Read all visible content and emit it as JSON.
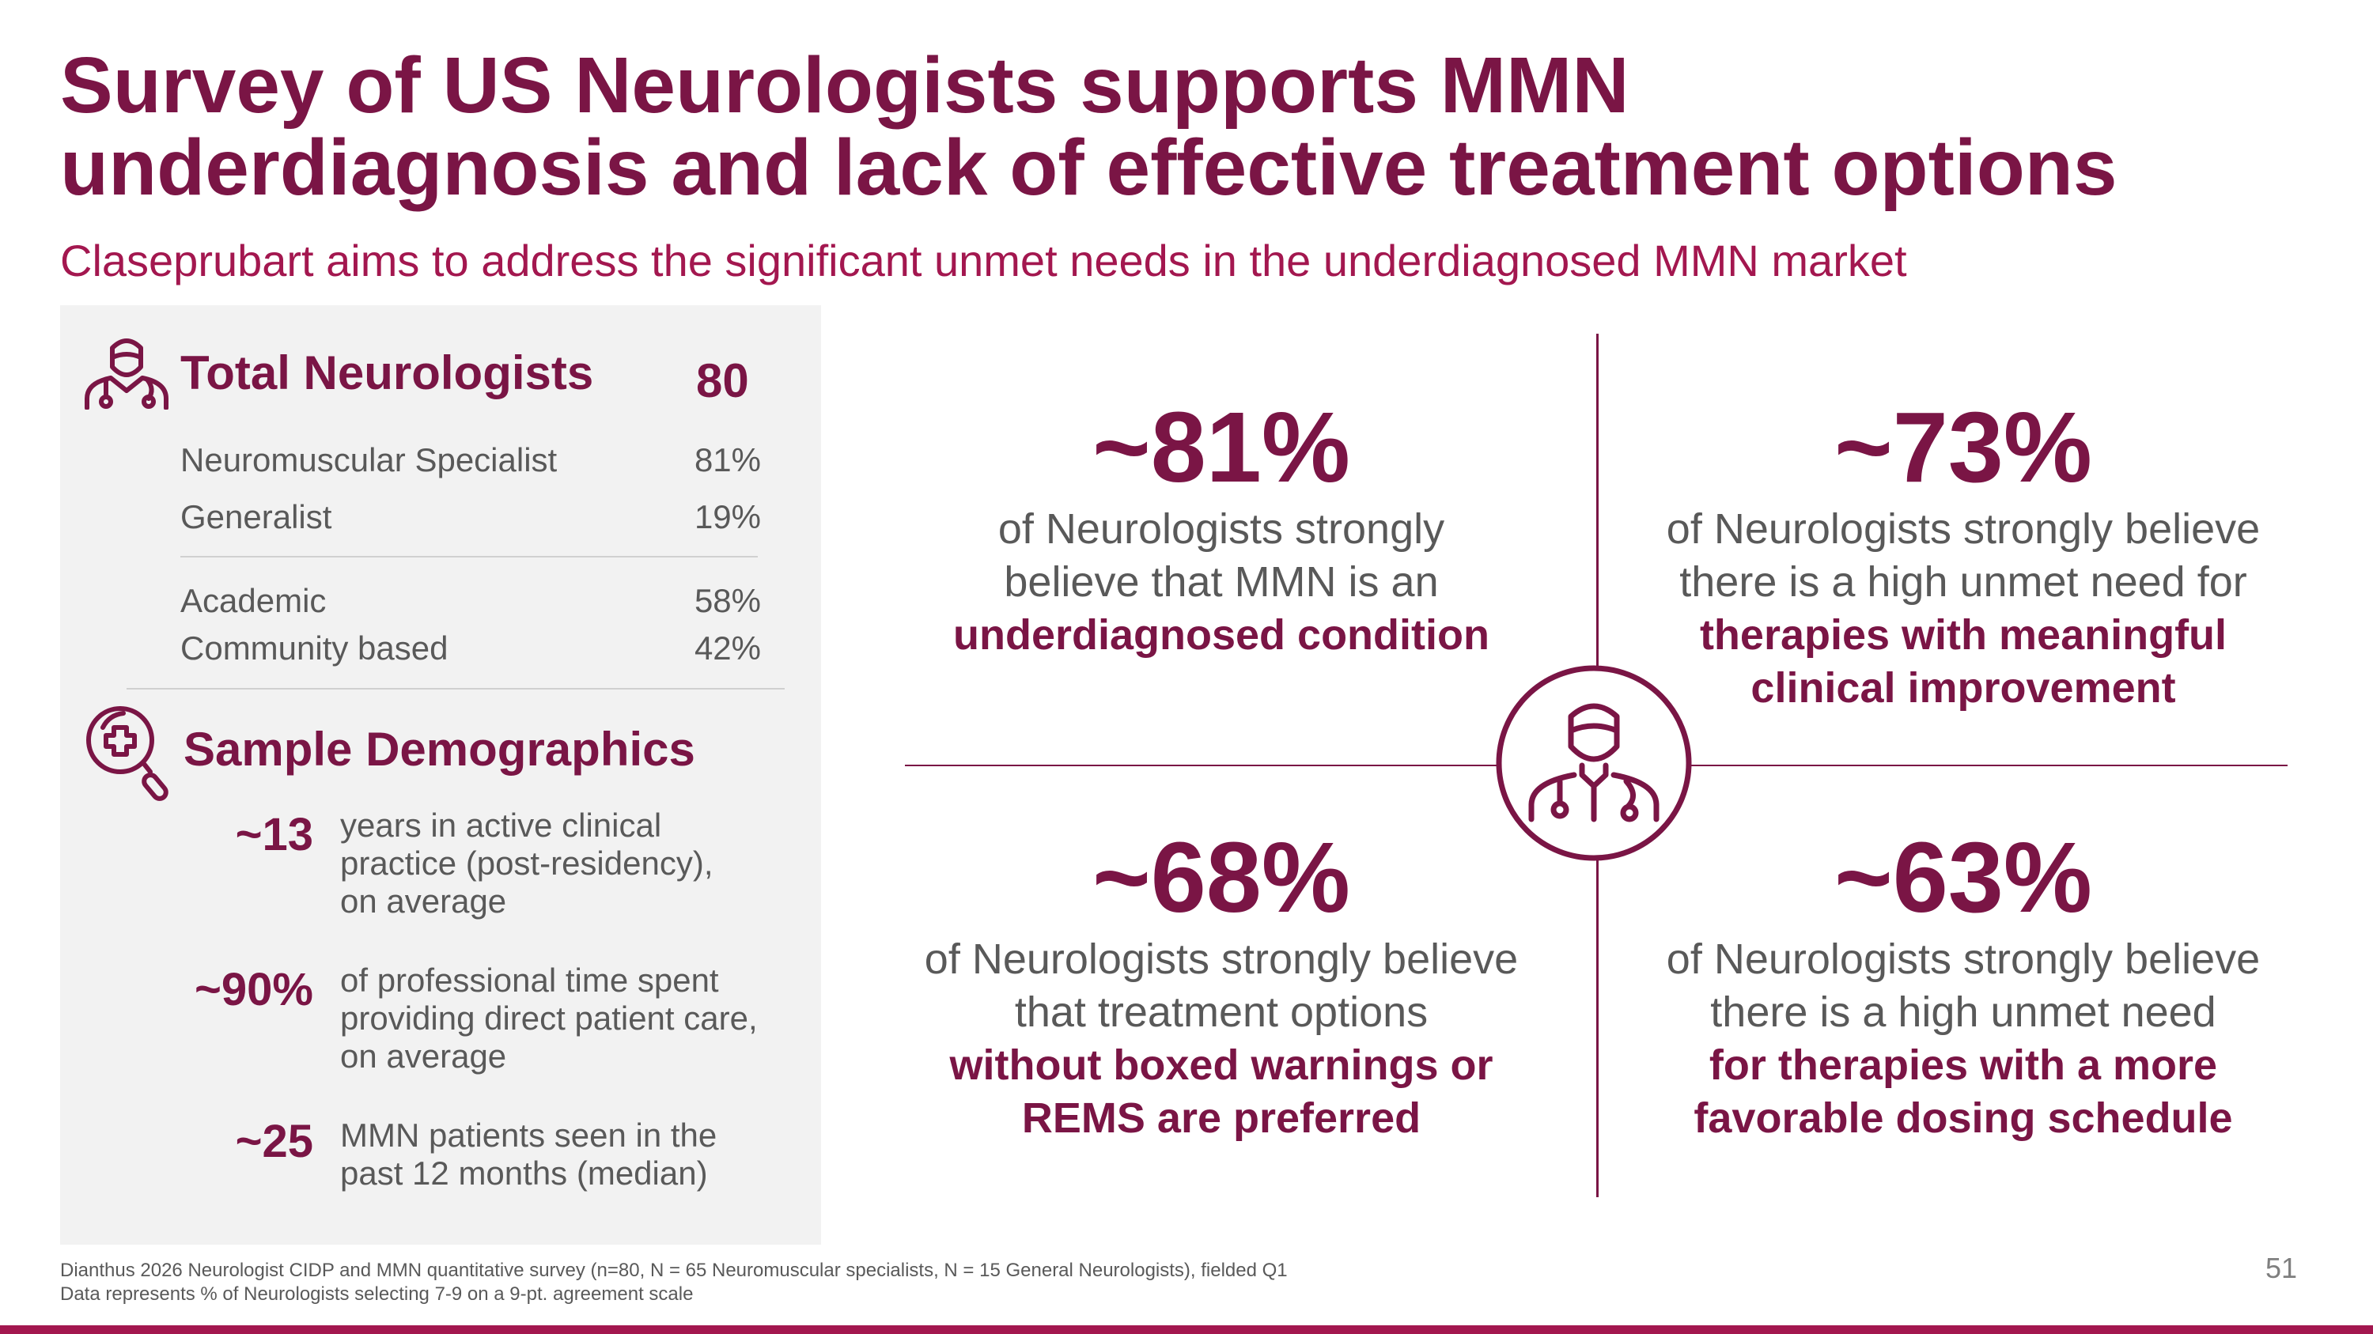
{
  "title": {
    "line1": "Survey of US Neurologists supports MMN",
    "line2": "underdiagnosis and lack of effective treatment options"
  },
  "subtitle": "Claseprubart aims to address the significant unmet needs in the underdiagnosed MMN market",
  "left_panel": {
    "total": {
      "label": "Total Neurologists",
      "value": "80",
      "icon": "doctor-icon"
    },
    "specialty_rows": [
      {
        "label": "Neuromuscular Specialist",
        "value": "81%"
      },
      {
        "label": "Generalist",
        "value": "19%"
      }
    ],
    "setting_rows": [
      {
        "label": "Academic",
        "value": "58%"
      },
      {
        "label": "Community based",
        "value": "42%"
      }
    ],
    "demographics": {
      "title": "Sample Demographics",
      "icon": "medical-search-icon",
      "items": [
        {
          "value": "~13",
          "lines": [
            "years in active clinical",
            "practice (post-residency),",
            "on average"
          ]
        },
        {
          "value": "~90%",
          "lines": [
            "of professional time spent",
            "providing direct patient care,",
            "on average"
          ]
        },
        {
          "value": "~25",
          "lines": [
            "MMN patients seen in the",
            "past 12 months (median)"
          ]
        }
      ]
    }
  },
  "quadrants": [
    {
      "value": "~81%",
      "lines": [
        "of Neurologists strongly",
        "believe that MMN is an"
      ],
      "bold_lines": [
        "underdiagnosed condition"
      ]
    },
    {
      "value": "~73%",
      "lines": [
        "of Neurologists strongly believe",
        "there is a high unmet need for"
      ],
      "bold_lines": [
        "therapies with meaningful",
        "clinical improvement"
      ]
    },
    {
      "value": "~68%",
      "lines": [
        "of Neurologists strongly believe",
        "that treatment options"
      ],
      "bold_lines": [
        "without boxed warnings or",
        "REMS are preferred"
      ]
    },
    {
      "value": "~63%",
      "lines": [
        "of Neurologists strongly believe",
        "there is a high unmet need"
      ],
      "bold_lines": [
        "for therapies with a more",
        "favorable dosing schedule"
      ]
    }
  ],
  "center_icon": "doctor-icon",
  "footnote": {
    "line1": "Dianthus 2026 Neurologist CIDP and MMN quantitative survey (n=80, N = 65 Neuromuscular specialists, N = 15 General Neurologists), fielded Q1",
    "line2": "Data represents % of Neurologists selecting 7-9 on a 9-pt. agreement scale"
  },
  "page_number": "51",
  "colors": {
    "accent": "#7a1545",
    "subtitle": "#a3174f",
    "panel": "#f2f2f2",
    "body_text": "#595959"
  }
}
